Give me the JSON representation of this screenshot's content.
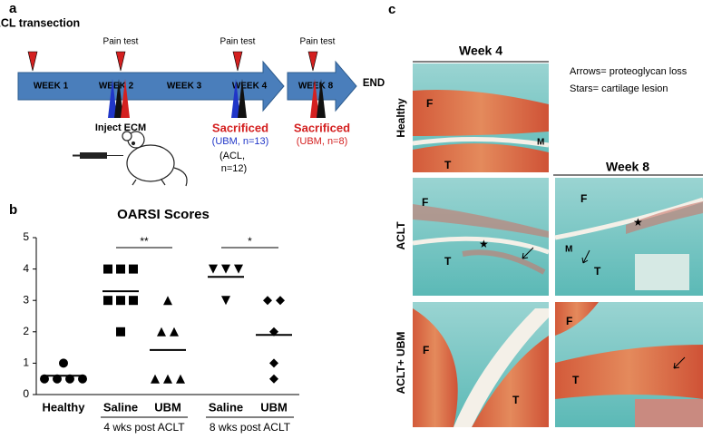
{
  "panel_a": {
    "label": "a",
    "start": "ACL transection",
    "weeks": [
      "WEEK 1",
      "WEEK 2",
      "WEEK 3",
      "WEEK 4",
      "WEEK 8"
    ],
    "end": "END",
    "pain_tests": [
      "Pain test",
      "Pain test",
      "Pain test"
    ],
    "inject": "Inject ECM",
    "sacrificed": [
      "Sacrificed",
      "Sacrificed"
    ],
    "week4_ubm": "(UBM, n=13)",
    "week4_acl": [
      "(ACL,",
      "n=12)"
    ],
    "week8_ubm": "(UBM, n=8)"
  },
  "chart_data": {
    "type": "scatter",
    "panel_label": "b",
    "title": "OARSI Scores",
    "categories": [
      "Healthy",
      "Saline",
      "UBM",
      "Saline",
      "UBM"
    ],
    "group_labels": [
      "4 wks post ACLT",
      "8 wks post ACLT"
    ],
    "markers": [
      "circle",
      "square",
      "triangle",
      "triangle-down",
      "diamond"
    ],
    "values": [
      [
        1,
        0.5,
        0.5,
        0.5,
        0.5
      ],
      [
        4,
        4,
        4,
        3,
        3,
        3,
        2
      ],
      [
        3,
        2,
        2,
        0.5,
        0.5,
        0.5
      ],
      [
        4,
        4,
        4,
        3
      ],
      [
        3,
        3,
        2,
        1,
        0.5
      ]
    ],
    "means": [
      0.6,
      3.29,
      1.42,
      3.75,
      1.9
    ],
    "significance": [
      "**",
      "*"
    ],
    "color": "#000000",
    "ylim": [
      0,
      5
    ],
    "yticks": [
      0,
      1,
      2,
      3,
      4,
      5
    ]
  },
  "panel_c": {
    "label": "c",
    "columns": [
      "Week 4",
      "Week 8"
    ],
    "rows": [
      "Healthy",
      "ACLT",
      "ACLT+ UBM"
    ],
    "legend": [
      "Arrows= proteoglycan loss",
      "Stars= cartilage lesion"
    ],
    "image_letters": [
      [
        "F",
        "M",
        "T"
      ],
      [
        "F",
        "T"
      ],
      [
        "F",
        "M",
        "T"
      ],
      [
        "F",
        "T"
      ],
      [
        "F",
        "T"
      ]
    ]
  }
}
